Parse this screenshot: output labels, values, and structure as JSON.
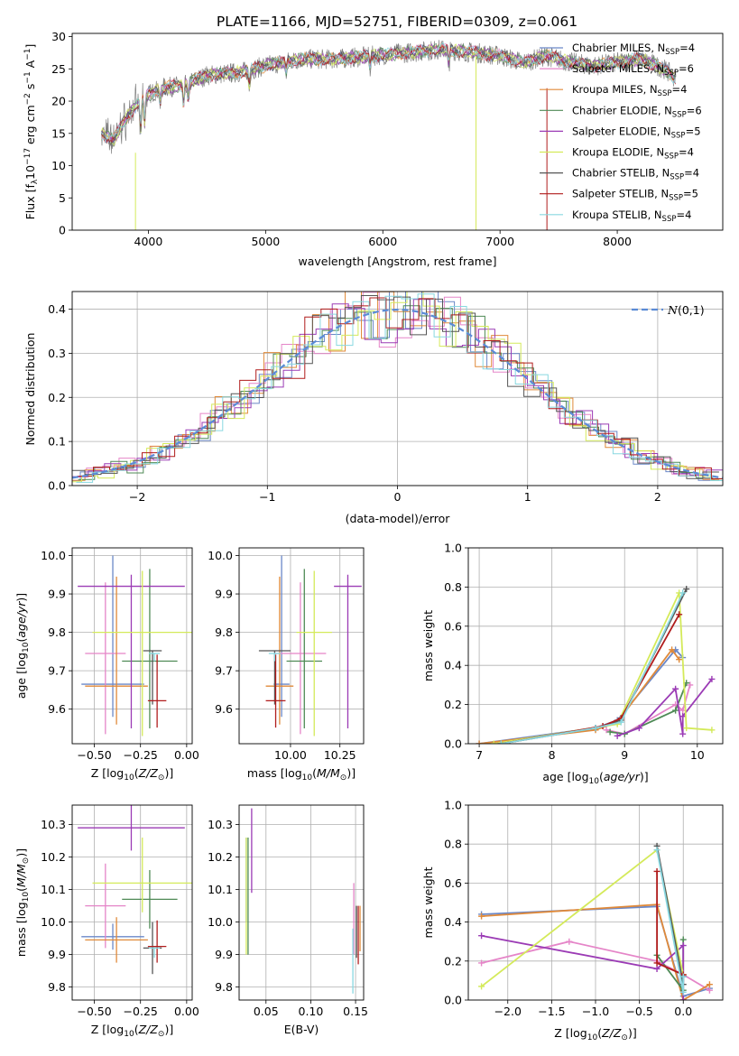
{
  "title": "PLATE=1166, MJD=52751, FIBERID=0309, z=0.061",
  "colors": {
    "Chabrier MILES": "#6b88c8",
    "Salpeter MILES": "#e585c8",
    "Kroupa MILES": "#e08a3a",
    "Chabrier ELODIE": "#4f8a56",
    "Salpeter ELODIE": "#9b3bb5",
    "Kroupa ELODIE": "#d4ea5a",
    "Chabrier STELIB": "#555555",
    "Salpeter STELIB": "#b01c1c",
    "Kroupa STELIB": "#88d8e0",
    "data": "#808080"
  },
  "chart_data": [
    {
      "id": "spectrum",
      "type": "line",
      "title": "PLATE=1166, MJD=52751, FIBERID=0309, z=0.061",
      "xlabel": "wavelength [Angstrom, rest frame]",
      "ylabel_parts": [
        "Flux [f",
        "λ",
        "10",
        "−17",
        " erg cm",
        "−2",
        " s",
        "−1",
        " A",
        "−1",
        "]"
      ],
      "xlim": [
        3350,
        8900
      ],
      "ylim": [
        0,
        30.5
      ],
      "xticks": [
        4000,
        5000,
        6000,
        7000,
        8000
      ],
      "yticks": [
        0,
        5,
        10,
        15,
        20,
        25,
        30
      ],
      "legend_loc": "right",
      "legend": [
        {
          "name": "Chabrier MILES",
          "n": "4"
        },
        {
          "name": "Salpeter MILES",
          "n": "6"
        },
        {
          "name": "Kroupa MILES",
          "n": "4"
        },
        {
          "name": "Chabrier ELODIE",
          "n": "6"
        },
        {
          "name": "Salpeter ELODIE",
          "n": "5"
        },
        {
          "name": "Kroupa ELODIE",
          "n": "4"
        },
        {
          "name": "Chabrier STELIB",
          "n": "4"
        },
        {
          "name": "Salpeter STELIB",
          "n": "5"
        },
        {
          "name": "Kroupa STELIB",
          "n": "4"
        }
      ],
      "continuum": {
        "x": [
          3600,
          3700,
          3800,
          3900,
          4000,
          4100,
          4300,
          4500,
          4800,
          5000,
          5300,
          5600,
          5900,
          6200,
          6500,
          6800,
          7000,
          7200,
          7400,
          7600,
          7800,
          8000,
          8200,
          8400,
          8500
        ],
        "y": [
          15,
          14,
          17,
          19.5,
          21,
          22,
          22.5,
          24,
          24.5,
          25.5,
          26.5,
          26.5,
          27,
          27.5,
          28,
          27.5,
          27,
          26,
          27,
          26,
          25.5,
          26,
          26.5,
          25,
          23.5
        ]
      }
    },
    {
      "id": "residuals",
      "type": "histogram",
      "xlabel": "(data-model)/error",
      "ylabel": "Normed distribution",
      "xlim": [
        -2.5,
        2.5
      ],
      "ylim": [
        0,
        0.44
      ],
      "xticks": [
        -2,
        -1,
        0,
        1,
        2
      ],
      "yticks": [
        0.0,
        0.1,
        0.2,
        0.3,
        0.4
      ],
      "reference_label": "N(0,1)",
      "bins": 40
    },
    {
      "id": "age-Z",
      "type": "errorbar",
      "xlabel": "Z [log10(Z/Z⊙)]",
      "ylabel": "age  [log10(age/yr)]",
      "xlim": [
        -0.62,
        0.03
      ],
      "ylim": [
        9.51,
        10.02
      ],
      "xticks": [
        -0.5,
        -0.25,
        0.0
      ],
      "xtick_labels": [
        "−0.50",
        "−0.25",
        "0.00"
      ],
      "yticks": [
        9.6,
        9.7,
        9.8,
        9.9,
        10.0
      ],
      "points": [
        {
          "fit": "Chabrier MILES",
          "x": -0.4,
          "xerr": 0.17,
          "y": 9.665,
          "yerr": [
            0.085,
            0.335
          ]
        },
        {
          "fit": "Salpeter MILES",
          "x": -0.44,
          "xerr": 0.11,
          "y": 9.745,
          "yerr": [
            0.21,
            0.185
          ]
        },
        {
          "fit": "Kroupa MILES",
          "x": -0.38,
          "xerr": 0.17,
          "y": 9.66,
          "yerr": [
            0.1,
            0.285
          ]
        },
        {
          "fit": "Chabrier ELODIE",
          "x": -0.2,
          "xerr": 0.15,
          "y": 9.725,
          "yerr": [
            0.175,
            0.24
          ]
        },
        {
          "fit": "Salpeter ELODIE",
          "x": -0.3,
          "xerr": 0.29,
          "y": 9.92,
          "yerr": [
            0.37,
            0.03
          ]
        },
        {
          "fit": "Kroupa ELODIE",
          "x": -0.24,
          "xerr": 0.27,
          "y": 9.8,
          "yerr": [
            0.27,
            0.16
          ]
        },
        {
          "fit": "Chabrier STELIB",
          "x": -0.185,
          "xerr": 0.05,
          "y": 9.752,
          "yerr": [
            0.14,
            0.0
          ]
        },
        {
          "fit": "Salpeter STELIB",
          "x": -0.16,
          "xerr": 0.05,
          "y": 9.622,
          "yerr": [
            0.07,
            0.12
          ]
        },
        {
          "fit": "Kroupa STELIB",
          "x": -0.175,
          "xerr": 0.03,
          "y": 9.745,
          "yerr": [
            0.02,
            0.0
          ]
        }
      ]
    },
    {
      "id": "age-mass",
      "type": "errorbar",
      "xlabel": "mass [log10(M/M⊙)]",
      "ylabel": "",
      "xlim": [
        9.74,
        10.37
      ],
      "ylim": [
        9.51,
        10.02
      ],
      "xticks": [
        10.0,
        10.25
      ],
      "xtick_labels": [
        "10.00",
        "10.25"
      ],
      "yticks": [
        9.6,
        9.7,
        9.8,
        9.9,
        10.0
      ],
      "points": [
        {
          "fit": "Chabrier MILES",
          "x": 9.955,
          "xerr": 0.04,
          "y": 9.665,
          "yerr": [
            0.085,
            0.335
          ]
        },
        {
          "fit": "Salpeter MILES",
          "x": 10.05,
          "xerr": 0.13,
          "y": 9.745,
          "yerr": [
            0.21,
            0.185
          ]
        },
        {
          "fit": "Kroupa MILES",
          "x": 9.945,
          "xerr": 0.07,
          "y": 9.66,
          "yerr": [
            0.1,
            0.285
          ]
        },
        {
          "fit": "Chabrier ELODIE",
          "x": 10.07,
          "xerr": 0.09,
          "y": 9.725,
          "yerr": [
            0.175,
            0.24
          ]
        },
        {
          "fit": "Salpeter ELODIE",
          "x": 10.29,
          "xerr": 0.07,
          "y": 9.92,
          "yerr": [
            0.37,
            0.03
          ]
        },
        {
          "fit": "Kroupa ELODIE",
          "x": 10.12,
          "xerr": 0.09,
          "y": 9.8,
          "yerr": [
            0.27,
            0.16
          ]
        },
        {
          "fit": "Chabrier STELIB",
          "x": 9.92,
          "xerr": 0.08,
          "y": 9.752,
          "yerr": [
            0.14,
            0.0
          ]
        },
        {
          "fit": "Salpeter STELIB",
          "x": 9.925,
          "xerr": 0.05,
          "y": 9.622,
          "yerr": [
            0.07,
            0.12
          ]
        },
        {
          "fit": "Kroupa STELIB",
          "x": 9.92,
          "xerr": 0.03,
          "y": 9.745,
          "yerr": [
            0.02,
            0.0
          ]
        }
      ]
    },
    {
      "id": "weight-age",
      "type": "line",
      "xlabel": "age  [log10(age/yr)]",
      "ylabel": "mass weight",
      "xlim": [
        6.85,
        10.35
      ],
      "ylim": [
        0,
        1.0
      ],
      "xticks": [
        7,
        8,
        9,
        10
      ],
      "yticks": [
        0.0,
        0.2,
        0.4,
        0.6,
        0.8,
        1.0
      ],
      "series": [
        {
          "fit": "Chabrier MILES",
          "x": [
            7.0,
            8.6,
            8.9,
            9.7,
            9.8
          ],
          "y": [
            0.0,
            0.08,
            0.12,
            0.48,
            0.44
          ]
        },
        {
          "fit": "Salpeter MILES",
          "x": [
            8.75,
            9.0,
            9.7,
            9.8,
            9.9
          ],
          "y": [
            0.07,
            0.05,
            0.2,
            0.17,
            0.3
          ]
        },
        {
          "fit": "Kroupa MILES",
          "x": [
            7.0,
            8.6,
            8.9,
            9.65,
            9.75
          ],
          "y": [
            0.0,
            0.07,
            0.11,
            0.48,
            0.43
          ]
        },
        {
          "fit": "Chabrier ELODIE",
          "x": [
            8.8,
            9.0,
            9.7,
            9.85
          ],
          "y": [
            0.06,
            0.05,
            0.17,
            0.31
          ]
        },
        {
          "fit": "Salpeter ELODIE",
          "x": [
            8.9,
            9.2,
            9.7,
            9.8,
            9.8,
            10.2
          ],
          "y": [
            0.04,
            0.08,
            0.28,
            0.05,
            0.14,
            0.33
          ]
        },
        {
          "fit": "Kroupa ELODIE",
          "x": [
            7.2,
            8.9,
            9.75,
            9.85,
            10.2
          ],
          "y": [
            0.0,
            0.1,
            0.77,
            0.08,
            0.07
          ]
        },
        {
          "fit": "Chabrier STELIB",
          "x": [
            7.3,
            8.6,
            8.95,
            9.85
          ],
          "y": [
            0.0,
            0.08,
            0.12,
            0.79
          ]
        },
        {
          "fit": "Salpeter STELIB",
          "x": [
            7.3,
            8.7,
            8.95,
            9.75
          ],
          "y": [
            0.0,
            0.09,
            0.13,
            0.66
          ]
        },
        {
          "fit": "Kroupa STELIB",
          "x": [
            7.3,
            8.6,
            8.95,
            9.8
          ],
          "y": [
            0.0,
            0.08,
            0.11,
            0.77
          ]
        }
      ]
    },
    {
      "id": "mass-Z",
      "type": "errorbar",
      "xlabel": "Z [log10(Z/Z⊙)]",
      "ylabel": "mass [log10(M/M⊙)]",
      "xlim": [
        -0.62,
        0.03
      ],
      "ylim": [
        9.76,
        10.36
      ],
      "xticks": [
        -0.5,
        -0.25,
        0.0
      ],
      "xtick_labels": [
        "−0.50",
        "−0.25",
        "0.00"
      ],
      "yticks": [
        9.8,
        9.9,
        10.0,
        10.1,
        10.2,
        10.3
      ],
      "points": [
        {
          "fit": "Chabrier MILES",
          "x": -0.4,
          "xerr": 0.17,
          "y": 9.955,
          "yerr": [
            0.04,
            0.04
          ]
        },
        {
          "fit": "Salpeter MILES",
          "x": -0.44,
          "xerr": 0.11,
          "y": 10.05,
          "yerr": [
            0.13,
            0.13
          ]
        },
        {
          "fit": "Kroupa MILES",
          "x": -0.38,
          "xerr": 0.17,
          "y": 9.945,
          "yerr": [
            0.07,
            0.07
          ]
        },
        {
          "fit": "Chabrier ELODIE",
          "x": -0.2,
          "xerr": 0.15,
          "y": 10.07,
          "yerr": [
            0.09,
            0.09
          ]
        },
        {
          "fit": "Salpeter ELODIE",
          "x": -0.3,
          "xerr": 0.29,
          "y": 10.29,
          "yerr": [
            0.07,
            0.07
          ]
        },
        {
          "fit": "Kroupa ELODIE",
          "x": -0.24,
          "xerr": 0.27,
          "y": 10.12,
          "yerr": [
            0.09,
            0.14
          ]
        },
        {
          "fit": "Chabrier STELIB",
          "x": -0.185,
          "xerr": 0.05,
          "y": 9.92,
          "yerr": [
            0.08,
            0.08
          ]
        },
        {
          "fit": "Salpeter STELIB",
          "x": -0.16,
          "xerr": 0.05,
          "y": 9.925,
          "yerr": [
            0.05,
            0.08
          ]
        },
        {
          "fit": "Kroupa STELIB",
          "x": -0.175,
          "xerr": 0.03,
          "y": 9.92,
          "yerr": [
            0.03,
            0.0
          ]
        }
      ]
    },
    {
      "id": "mass-ebv",
      "type": "errorbar",
      "xlabel": "E(B-V)",
      "ylabel": "",
      "xlim": [
        0.02,
        0.159
      ],
      "ylim": [
        9.76,
        10.36
      ],
      "xticks": [
        0.05,
        0.1,
        0.15
      ],
      "xtick_labels": [
        "0.05",
        "0.10",
        "0.15"
      ],
      "yticks": [
        9.8,
        9.9,
        10.0,
        10.1,
        10.2,
        10.3
      ],
      "points": [
        {
          "fit": "Chabrier MILES",
          "x": 0.028,
          "xerr": 0.0,
          "y": 10.1,
          "yerr": [
            0.1,
            0.16
          ]
        },
        {
          "fit": "Salpeter MILES",
          "x": 0.148,
          "xerr": 0.0,
          "y": 10.02,
          "yerr": [
            0.12,
            0.1
          ]
        },
        {
          "fit": "Kroupa ELODIE",
          "x": 0.028,
          "xerr": 0.0,
          "y": 10.06,
          "yerr": [
            0.16,
            0.2
          ]
        },
        {
          "fit": "Chabrier ELODIE",
          "x": 0.03,
          "xerr": 0.0,
          "y": 10.08,
          "yerr": [
            0.18,
            0.18
          ]
        },
        {
          "fit": "Salpeter ELODIE",
          "x": 0.034,
          "xerr": 0.0,
          "y": 10.22,
          "yerr": [
            0.13,
            0.13
          ]
        },
        {
          "fit": "Kroupa STELIB",
          "x": 0.147,
          "xerr": 0.0,
          "y": 9.88,
          "yerr": [
            0.1,
            0.1
          ]
        },
        {
          "fit": "Chabrier STELIB",
          "x": 0.151,
          "xerr": 0.0,
          "y": 9.95,
          "yerr": [
            0.06,
            0.1
          ]
        },
        {
          "fit": "Salpeter STELIB",
          "x": 0.153,
          "xerr": 0.0,
          "y": 9.96,
          "yerr": [
            0.09,
            0.09
          ]
        },
        {
          "fit": "Kroupa MILES",
          "x": 0.155,
          "xerr": 0.0,
          "y": 9.98,
          "yerr": [
            0.07,
            0.07
          ]
        }
      ]
    },
    {
      "id": "weight-Z",
      "type": "line",
      "xlabel": "Z [log10(Z/Z⊙)]",
      "ylabel": "mass weight",
      "xlim": [
        -2.45,
        0.45
      ],
      "ylim": [
        0,
        1.0
      ],
      "xticks": [
        -2.0,
        -1.5,
        -1.0,
        -0.5,
        0.0
      ],
      "xtick_labels": [
        "−2.0",
        "−1.5",
        "−1.0",
        "−0.5",
        "0.0"
      ],
      "yticks": [
        0.0,
        0.2,
        0.4,
        0.6,
        0.8,
        1.0
      ],
      "series": [
        {
          "fit": "Chabrier MILES",
          "x": [
            -2.3,
            -0.3,
            0.0,
            0.3
          ],
          "y": [
            0.44,
            0.48,
            0.02,
            0.06
          ]
        },
        {
          "fit": "Salpeter MILES",
          "x": [
            -2.3,
            -1.3,
            -0.3,
            0.0,
            0.3
          ],
          "y": [
            0.19,
            0.3,
            0.2,
            0.13,
            0.05
          ]
        },
        {
          "fit": "Kroupa MILES",
          "x": [
            -2.3,
            -0.3,
            0.0,
            0.3
          ],
          "y": [
            0.43,
            0.49,
            0.0,
            0.08
          ]
        },
        {
          "fit": "Chabrier ELODIE",
          "x": [
            -0.3,
            0.0,
            0.0
          ],
          "y": [
            0.23,
            0.05,
            0.31
          ]
        },
        {
          "fit": "Salpeter ELODIE",
          "x": [
            -2.3,
            -0.3,
            0.0,
            0.0
          ],
          "y": [
            0.33,
            0.16,
            0.28,
            0.0
          ]
        },
        {
          "fit": "Kroupa ELODIE",
          "x": [
            -2.3,
            -0.3,
            0.0
          ],
          "y": [
            0.07,
            0.77,
            0.13
          ]
        },
        {
          "fit": "Chabrier STELIB",
          "x": [
            -0.3,
            0.0,
            0.0
          ],
          "y": [
            0.79,
            0.08,
            0.12
          ]
        },
        {
          "fit": "Salpeter STELIB",
          "x": [
            -0.3,
            -0.3,
            0.0
          ],
          "y": [
            0.66,
            0.19,
            0.13
          ]
        },
        {
          "fit": "Kroupa STELIB",
          "x": [
            -0.3,
            0.0,
            0.0
          ],
          "y": [
            0.77,
            0.04,
            0.12
          ]
        }
      ]
    }
  ]
}
